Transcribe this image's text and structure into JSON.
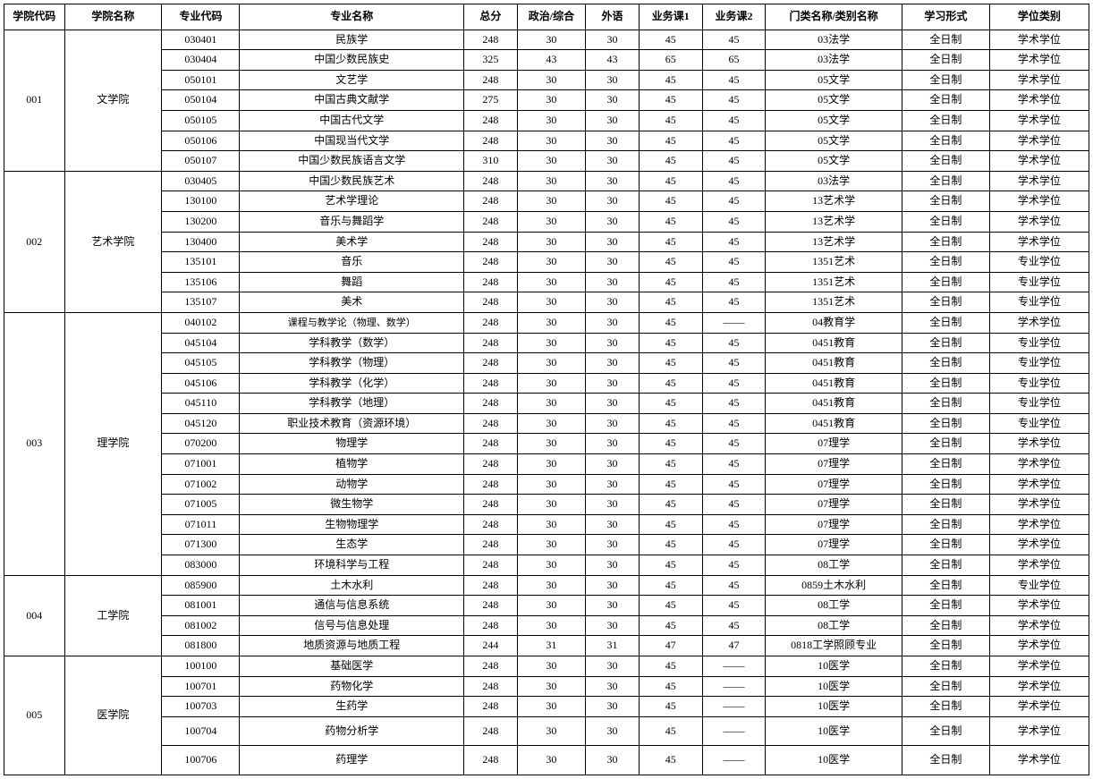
{
  "table": {
    "columns": [
      {
        "key": "collegeCode",
        "label": "学院代码",
        "class": "col-collegecode"
      },
      {
        "key": "collegeName",
        "label": "学院名称",
        "class": "col-collegename"
      },
      {
        "key": "majorCode",
        "label": "专业代码",
        "class": "col-majorcode"
      },
      {
        "key": "majorName",
        "label": "专业名称",
        "class": "col-majorname"
      },
      {
        "key": "total",
        "label": "总分",
        "class": "col-total"
      },
      {
        "key": "politics",
        "label": "政治/综合",
        "class": "col-politics"
      },
      {
        "key": "foreign",
        "label": "外语",
        "class": "col-foreign"
      },
      {
        "key": "pro1",
        "label": "业务课1",
        "class": "col-pro1"
      },
      {
        "key": "pro2",
        "label": "业务课2",
        "class": "col-pro2"
      },
      {
        "key": "category",
        "label": "门类名称/类别名称",
        "class": "col-catname"
      },
      {
        "key": "studyMode",
        "label": "学习形式",
        "class": "col-studymode"
      },
      {
        "key": "degreeType",
        "label": "学位类别",
        "class": "col-degreetype"
      }
    ],
    "colleges": [
      {
        "code": "001",
        "name": "文学院",
        "rows": [
          {
            "majorCode": "030401",
            "majorName": "民族学",
            "total": "248",
            "politics": "30",
            "foreign": "30",
            "pro1": "45",
            "pro2": "45",
            "category": "03法学",
            "studyMode": "全日制",
            "degreeType": "学术学位"
          },
          {
            "majorCode": "030404",
            "majorName": "中国少数民族史",
            "total": "325",
            "politics": "43",
            "foreign": "43",
            "pro1": "65",
            "pro2": "65",
            "category": "03法学",
            "studyMode": "全日制",
            "degreeType": "学术学位"
          },
          {
            "majorCode": "050101",
            "majorName": "文艺学",
            "total": "248",
            "politics": "30",
            "foreign": "30",
            "pro1": "45",
            "pro2": "45",
            "category": "05文学",
            "studyMode": "全日制",
            "degreeType": "学术学位"
          },
          {
            "majorCode": "050104",
            "majorName": "中国古典文献学",
            "total": "275",
            "politics": "30",
            "foreign": "30",
            "pro1": "45",
            "pro2": "45",
            "category": "05文学",
            "studyMode": "全日制",
            "degreeType": "学术学位"
          },
          {
            "majorCode": "050105",
            "majorName": "中国古代文学",
            "total": "248",
            "politics": "30",
            "foreign": "30",
            "pro1": "45",
            "pro2": "45",
            "category": "05文学",
            "studyMode": "全日制",
            "degreeType": "学术学位"
          },
          {
            "majorCode": "050106",
            "majorName": "中国现当代文学",
            "total": "248",
            "politics": "30",
            "foreign": "30",
            "pro1": "45",
            "pro2": "45",
            "category": "05文学",
            "studyMode": "全日制",
            "degreeType": "学术学位"
          },
          {
            "majorCode": "050107",
            "majorName": "中国少数民族语言文学",
            "total": "310",
            "politics": "30",
            "foreign": "30",
            "pro1": "45",
            "pro2": "45",
            "category": "05文学",
            "studyMode": "全日制",
            "degreeType": "学术学位"
          }
        ]
      },
      {
        "code": "002",
        "name": "艺术学院",
        "rows": [
          {
            "majorCode": "030405",
            "majorName": "中国少数民族艺术",
            "total": "248",
            "politics": "30",
            "foreign": "30",
            "pro1": "45",
            "pro2": "45",
            "category": "03法学",
            "studyMode": "全日制",
            "degreeType": "学术学位"
          },
          {
            "majorCode": "130100",
            "majorName": "艺术学理论",
            "total": "248",
            "politics": "30",
            "foreign": "30",
            "pro1": "45",
            "pro2": "45",
            "category": "13艺术学",
            "studyMode": "全日制",
            "degreeType": "学术学位"
          },
          {
            "majorCode": "130200",
            "majorName": "音乐与舞蹈学",
            "total": "248",
            "politics": "30",
            "foreign": "30",
            "pro1": "45",
            "pro2": "45",
            "category": "13艺术学",
            "studyMode": "全日制",
            "degreeType": "学术学位"
          },
          {
            "majorCode": "130400",
            "majorName": "美术学",
            "total": "248",
            "politics": "30",
            "foreign": "30",
            "pro1": "45",
            "pro2": "45",
            "category": "13艺术学",
            "studyMode": "全日制",
            "degreeType": "学术学位"
          },
          {
            "majorCode": "135101",
            "majorName": "音乐",
            "total": "248",
            "politics": "30",
            "foreign": "30",
            "pro1": "45",
            "pro2": "45",
            "category": "1351艺术",
            "studyMode": "全日制",
            "degreeType": "专业学位"
          },
          {
            "majorCode": "135106",
            "majorName": "舞蹈",
            "total": "248",
            "politics": "30",
            "foreign": "30",
            "pro1": "45",
            "pro2": "45",
            "category": "1351艺术",
            "studyMode": "全日制",
            "degreeType": "专业学位"
          },
          {
            "majorCode": "135107",
            "majorName": "美术",
            "total": "248",
            "politics": "30",
            "foreign": "30",
            "pro1": "45",
            "pro2": "45",
            "category": "1351艺术",
            "studyMode": "全日制",
            "degreeType": "专业学位"
          }
        ]
      },
      {
        "code": "003",
        "name": "理学院",
        "rows": [
          {
            "majorCode": "040102",
            "majorName": "课程与教学论（物理、数学）",
            "note": true,
            "total": "248",
            "politics": "30",
            "foreign": "30",
            "pro1": "45",
            "pro2": "——",
            "category": "04教育学",
            "studyMode": "全日制",
            "degreeType": "学术学位"
          },
          {
            "majorCode": "045104",
            "majorName": "学科教学（数学）",
            "total": "248",
            "politics": "30",
            "foreign": "30",
            "pro1": "45",
            "pro2": "45",
            "category": "0451教育",
            "studyMode": "全日制",
            "degreeType": "专业学位"
          },
          {
            "majorCode": "045105",
            "majorName": "学科教学（物理）",
            "total": "248",
            "politics": "30",
            "foreign": "30",
            "pro1": "45",
            "pro2": "45",
            "category": "0451教育",
            "studyMode": "全日制",
            "degreeType": "专业学位"
          },
          {
            "majorCode": "045106",
            "majorName": "学科教学（化学）",
            "total": "248",
            "politics": "30",
            "foreign": "30",
            "pro1": "45",
            "pro2": "45",
            "category": "0451教育",
            "studyMode": "全日制",
            "degreeType": "专业学位"
          },
          {
            "majorCode": "045110",
            "majorName": "学科教学（地理）",
            "total": "248",
            "politics": "30",
            "foreign": "30",
            "pro1": "45",
            "pro2": "45",
            "category": "0451教育",
            "studyMode": "全日制",
            "degreeType": "专业学位"
          },
          {
            "majorCode": "045120",
            "majorName": "职业技术教育（资源环境）",
            "total": "248",
            "politics": "30",
            "foreign": "30",
            "pro1": "45",
            "pro2": "45",
            "category": "0451教育",
            "studyMode": "全日制",
            "degreeType": "专业学位"
          },
          {
            "majorCode": "070200",
            "majorName": "物理学",
            "total": "248",
            "politics": "30",
            "foreign": "30",
            "pro1": "45",
            "pro2": "45",
            "category": "07理学",
            "studyMode": "全日制",
            "degreeType": "学术学位"
          },
          {
            "majorCode": "071001",
            "majorName": "植物学",
            "total": "248",
            "politics": "30",
            "foreign": "30",
            "pro1": "45",
            "pro2": "45",
            "category": "07理学",
            "studyMode": "全日制",
            "degreeType": "学术学位"
          },
          {
            "majorCode": "071002",
            "majorName": "动物学",
            "total": "248",
            "politics": "30",
            "foreign": "30",
            "pro1": "45",
            "pro2": "45",
            "category": "07理学",
            "studyMode": "全日制",
            "degreeType": "学术学位"
          },
          {
            "majorCode": "071005",
            "majorName": "微生物学",
            "total": "248",
            "politics": "30",
            "foreign": "30",
            "pro1": "45",
            "pro2": "45",
            "category": "07理学",
            "studyMode": "全日制",
            "degreeType": "学术学位"
          },
          {
            "majorCode": "071011",
            "majorName": "生物物理学",
            "total": "248",
            "politics": "30",
            "foreign": "30",
            "pro1": "45",
            "pro2": "45",
            "category": "07理学",
            "studyMode": "全日制",
            "degreeType": "学术学位"
          },
          {
            "majorCode": "071300",
            "majorName": "生态学",
            "total": "248",
            "politics": "30",
            "foreign": "30",
            "pro1": "45",
            "pro2": "45",
            "category": "07理学",
            "studyMode": "全日制",
            "degreeType": "学术学位"
          },
          {
            "majorCode": "083000",
            "majorName": "环境科学与工程",
            "total": "248",
            "politics": "30",
            "foreign": "30",
            "pro1": "45",
            "pro2": "45",
            "category": "08工学",
            "studyMode": "全日制",
            "degreeType": "学术学位"
          }
        ]
      },
      {
        "code": "004",
        "name": "工学院",
        "rows": [
          {
            "majorCode": "085900",
            "majorName": "土木水利",
            "total": "248",
            "politics": "30",
            "foreign": "30",
            "pro1": "45",
            "pro2": "45",
            "category": "0859土木水利",
            "studyMode": "全日制",
            "degreeType": "专业学位"
          },
          {
            "majorCode": "081001",
            "majorName": "通信与信息系统",
            "total": "248",
            "politics": "30",
            "foreign": "30",
            "pro1": "45",
            "pro2": "45",
            "category": "08工学",
            "studyMode": "全日制",
            "degreeType": "学术学位"
          },
          {
            "majorCode": "081002",
            "majorName": "信号与信息处理",
            "total": "248",
            "politics": "30",
            "foreign": "30",
            "pro1": "45",
            "pro2": "45",
            "category": "08工学",
            "studyMode": "全日制",
            "degreeType": "学术学位"
          },
          {
            "majorCode": "081800",
            "majorName": "地质资源与地质工程",
            "total": "244",
            "politics": "31",
            "foreign": "31",
            "pro1": "47",
            "pro2": "47",
            "category": "0818工学照顾专业",
            "studyMode": "全日制",
            "degreeType": "学术学位"
          }
        ]
      },
      {
        "code": "005",
        "name": "医学院",
        "rows": [
          {
            "majorCode": "100100",
            "majorName": "基础医学",
            "total": "248",
            "politics": "30",
            "foreign": "30",
            "pro1": "45",
            "pro2": "——",
            "category": "10医学",
            "studyMode": "全日制",
            "degreeType": "学术学位"
          },
          {
            "majorCode": "100701",
            "majorName": "药物化学",
            "total": "248",
            "politics": "30",
            "foreign": "30",
            "pro1": "45",
            "pro2": "——",
            "category": "10医学",
            "studyMode": "全日制",
            "degreeType": "学术学位"
          },
          {
            "majorCode": "100703",
            "majorName": "生药学",
            "total": "248",
            "politics": "30",
            "foreign": "30",
            "pro1": "45",
            "pro2": "——",
            "category": "10医学",
            "studyMode": "全日制",
            "degreeType": "学术学位"
          },
          {
            "majorCode": "100704",
            "majorName": "药物分析学",
            "total": "248",
            "politics": "30",
            "foreign": "30",
            "pro1": "45",
            "pro2": "——",
            "category": "10医学",
            "studyMode": "全日制",
            "degreeType": "学术学位",
            "tall": true
          },
          {
            "majorCode": "100706",
            "majorName": "药理学",
            "total": "248",
            "politics": "30",
            "foreign": "30",
            "pro1": "45",
            "pro2": "——",
            "category": "10医学",
            "studyMode": "全日制",
            "degreeType": "学术学位",
            "tall": true
          }
        ]
      }
    ]
  }
}
